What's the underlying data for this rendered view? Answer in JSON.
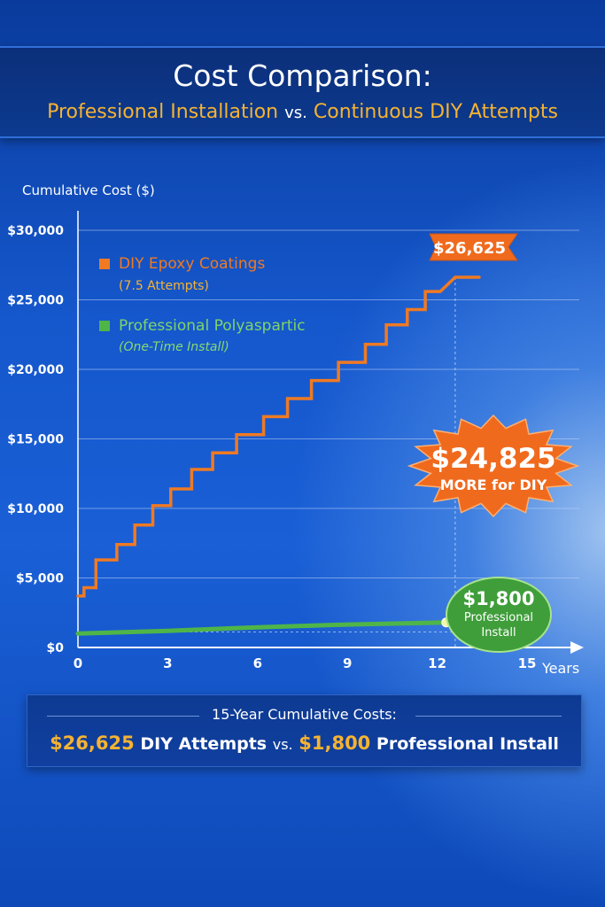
{
  "header": {
    "title": "Cost Comparison:",
    "subtitle_left": "Professional Installation",
    "subtitle_vs": "vs.",
    "subtitle_right": "Continuous DIY Attempts"
  },
  "colors": {
    "diy": "#f07a22",
    "professional": "#4fb548",
    "gold": "#f5b332",
    "burst": "#f06a1e"
  },
  "chart_data": {
    "type": "line",
    "ylabel": "Cumulative Cost ($)",
    "xlabel": "Years",
    "ylim": [
      0,
      30000
    ],
    "xlim": [
      0,
      15
    ],
    "y_ticks": [
      {
        "value": 0,
        "label": "$0"
      },
      {
        "value": 5000,
        "label": "$5,000"
      },
      {
        "value": 10000,
        "label": "$10,000"
      },
      {
        "value": 15000,
        "label": "$15,000"
      },
      {
        "value": 20000,
        "label": "$20,000"
      },
      {
        "value": 25000,
        "label": "$25,000"
      },
      {
        "value": 30000,
        "label": "$30,000"
      }
    ],
    "x_ticks": [
      {
        "value": 0,
        "label": "0"
      },
      {
        "value": 3,
        "label": "3"
      },
      {
        "value": 6,
        "label": "6"
      },
      {
        "value": 9,
        "label": "9"
      },
      {
        "value": 12,
        "label": "12"
      },
      {
        "value": 15,
        "label": "15"
      }
    ],
    "grid": true,
    "legend": [
      {
        "name": "DIY Epoxy Coatings",
        "note": "(7.5 Attempts)"
      },
      {
        "name": "Professional Polyaspartic",
        "note": "(One-Time Install)"
      }
    ],
    "series": [
      {
        "name": "DIY Epoxy Coatings",
        "style": "step",
        "points": [
          [
            0,
            3700
          ],
          [
            0.2,
            3700
          ],
          [
            0.2,
            4300
          ],
          [
            0.6,
            4300
          ],
          [
            0.6,
            6300
          ],
          [
            1.3,
            6300
          ],
          [
            1.3,
            7400
          ],
          [
            1.9,
            7400
          ],
          [
            1.9,
            8800
          ],
          [
            2.5,
            8800
          ],
          [
            2.5,
            10200
          ],
          [
            3.1,
            10200
          ],
          [
            3.1,
            11400
          ],
          [
            3.8,
            11400
          ],
          [
            3.8,
            12800
          ],
          [
            4.5,
            12800
          ],
          [
            4.5,
            14000
          ],
          [
            5.3,
            14000
          ],
          [
            5.3,
            15300
          ],
          [
            6.2,
            15300
          ],
          [
            6.2,
            16600
          ],
          [
            7.0,
            16600
          ],
          [
            7.0,
            17900
          ],
          [
            7.8,
            17900
          ],
          [
            7.8,
            19200
          ],
          [
            8.7,
            19200
          ],
          [
            8.7,
            20500
          ],
          [
            9.6,
            20500
          ],
          [
            9.6,
            21800
          ],
          [
            10.3,
            21800
          ],
          [
            10.3,
            23200
          ],
          [
            11.0,
            23200
          ],
          [
            11.0,
            24300
          ],
          [
            11.6,
            24300
          ],
          [
            11.6,
            25600
          ],
          [
            12.1,
            25600
          ],
          [
            12.6,
            26625
          ],
          [
            13.4,
            26625
          ]
        ]
      },
      {
        "name": "Professional Polyaspartic",
        "style": "line",
        "points": [
          [
            0,
            1000
          ],
          [
            3,
            1200
          ],
          [
            6,
            1450
          ],
          [
            9,
            1650
          ],
          [
            12.3,
            1800
          ]
        ]
      }
    ],
    "annotations": {
      "diy_total_label": "$26,625",
      "difference_value": "$24,825",
      "difference_text": "MORE for DIY",
      "pro_total_value": "$1,800",
      "pro_total_line1": "Professional",
      "pro_total_line2": "Install"
    }
  },
  "summary": {
    "heading": "15-Year Cumulative Costs:",
    "diy_value": "$26,625",
    "diy_text": "DIY Attempts",
    "vs": "vs.",
    "pro_value": "$1,800",
    "pro_text": "Professional Install"
  }
}
